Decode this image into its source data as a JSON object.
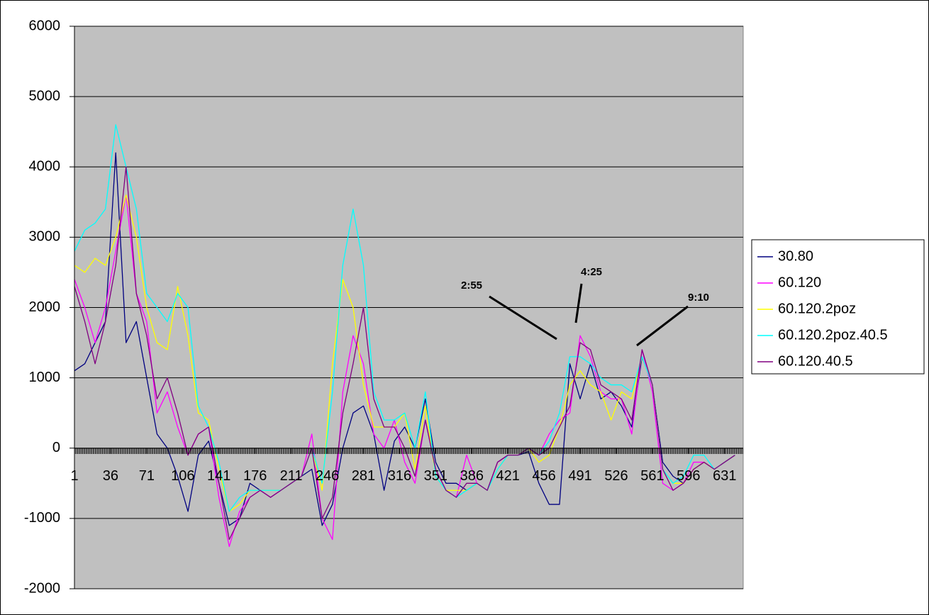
{
  "chart_data": {
    "type": "line",
    "x": [
      1,
      11,
      21,
      31,
      41,
      51,
      61,
      71,
      81,
      91,
      101,
      111,
      121,
      131,
      141,
      151,
      161,
      171,
      181,
      191,
      201,
      211,
      221,
      231,
      241,
      251,
      261,
      271,
      281,
      291,
      301,
      311,
      321,
      331,
      341,
      351,
      361,
      371,
      381,
      391,
      401,
      411,
      421,
      431,
      441,
      451,
      461,
      471,
      481,
      491,
      501,
      511,
      521,
      531,
      541,
      551,
      561,
      571,
      581,
      591,
      601,
      611,
      621,
      631,
      641
    ],
    "xlim": [
      1,
      649
    ],
    "xticks": [
      1,
      36,
      71,
      106,
      141,
      176,
      211,
      246,
      281,
      316,
      351,
      386,
      421,
      456,
      491,
      526,
      561,
      596,
      631
    ],
    "ylim": [
      -2000,
      6000
    ],
    "yticks": [
      -2000,
      -1000,
      0,
      1000,
      2000,
      3000,
      4000,
      5000,
      6000
    ],
    "grid": true,
    "legend": "right",
    "annotations": [
      "2:55",
      "4:25",
      "9:10"
    ],
    "series": [
      {
        "name": "30.80",
        "color": "#000080",
        "values": [
          1100,
          1200,
          1500,
          1800,
          4200,
          1500,
          1800,
          1000,
          200,
          0,
          -400,
          -900,
          -100,
          100,
          -500,
          -1100,
          -1000,
          -500,
          -600,
          -700,
          -600,
          -500,
          -400,
          -300,
          -1100,
          -800,
          0,
          500,
          600,
          200,
          -600,
          100,
          300,
          0,
          700,
          -200,
          -500,
          -500,
          -600,
          -500,
          -600,
          -200,
          -100,
          -100,
          -50,
          -500,
          -800,
          -800,
          1200,
          700,
          1200,
          700,
          800,
          600,
          300,
          1300,
          900,
          -200,
          -400,
          -500,
          -300,
          -200,
          -300,
          -200,
          -100
        ]
      },
      {
        "name": "60.120",
        "color": "#ff00ff",
        "values": [
          2400,
          2000,
          1500,
          2000,
          2800,
          3600,
          2200,
          1800,
          500,
          800,
          300,
          -100,
          200,
          300,
          -700,
          -1400,
          -900,
          -700,
          -600,
          -700,
          -600,
          -500,
          -400,
          200,
          -1000,
          -1300,
          800,
          1600,
          1200,
          200,
          0,
          400,
          -200,
          -500,
          400,
          -300,
          -600,
          -700,
          -100,
          -500,
          -600,
          -200,
          -100,
          -100,
          0,
          -100,
          200,
          400,
          500,
          1600,
          1300,
          800,
          700,
          700,
          200,
          1400,
          800,
          -500,
          -600,
          -500,
          -200,
          -200,
          -300,
          -200,
          -100
        ]
      },
      {
        "name": "60.120.2poz",
        "color": "#ffff00",
        "values": [
          2600,
          2500,
          2700,
          2600,
          3000,
          3600,
          3000,
          2000,
          1500,
          1400,
          2300,
          1600,
          500,
          400,
          -300,
          -900,
          -800,
          -600,
          -600,
          -600,
          -600,
          -500,
          -400,
          0,
          -600,
          1200,
          2400,
          2000,
          900,
          300,
          300,
          300,
          500,
          -300,
          600,
          -400,
          -600,
          -600,
          -600,
          -500,
          -600,
          -300,
          -100,
          -100,
          0,
          -200,
          -100,
          300,
          900,
          1100,
          900,
          800,
          400,
          800,
          700,
          1300,
          900,
          -300,
          -500,
          -500,
          -300,
          -200,
          -300,
          -200,
          -100
        ]
      },
      {
        "name": "60.120.2poz.40.5",
        "color": "#00ffff",
        "values": [
          2800,
          3100,
          3200,
          3400,
          4600,
          4000,
          3400,
          2200,
          2000,
          1800,
          2200,
          2000,
          600,
          300,
          -200,
          -900,
          -700,
          -600,
          -600,
          -600,
          -600,
          -500,
          -400,
          0,
          -500,
          800,
          2600,
          3400,
          2600,
          800,
          400,
          400,
          500,
          0,
          800,
          -400,
          -600,
          -700,
          -600,
          -500,
          -600,
          -300,
          -100,
          -100,
          0,
          -100,
          100,
          500,
          1300,
          1300,
          1200,
          1000,
          900,
          900,
          800,
          1300,
          900,
          -300,
          -500,
          -400,
          -100,
          -100,
          -300,
          -200,
          -100
        ]
      },
      {
        "name": "60.120.40.5",
        "color": "#800080",
        "values": [
          2300,
          1800,
          1200,
          1800,
          2600,
          4000,
          2200,
          1600,
          700,
          1000,
          500,
          -100,
          200,
          300,
          -500,
          -1300,
          -1000,
          -700,
          -600,
          -700,
          -600,
          -500,
          -400,
          0,
          -1000,
          -700,
          500,
          1200,
          2000,
          700,
          300,
          300,
          0,
          -400,
          400,
          -300,
          -600,
          -700,
          -500,
          -500,
          -600,
          -200,
          -100,
          -100,
          0,
          -100,
          0,
          300,
          600,
          1500,
          1400,
          900,
          800,
          700,
          400,
          1400,
          900,
          -300,
          -600,
          -500,
          -300,
          -200,
          -300,
          -200,
          -100
        ]
      }
    ]
  }
}
